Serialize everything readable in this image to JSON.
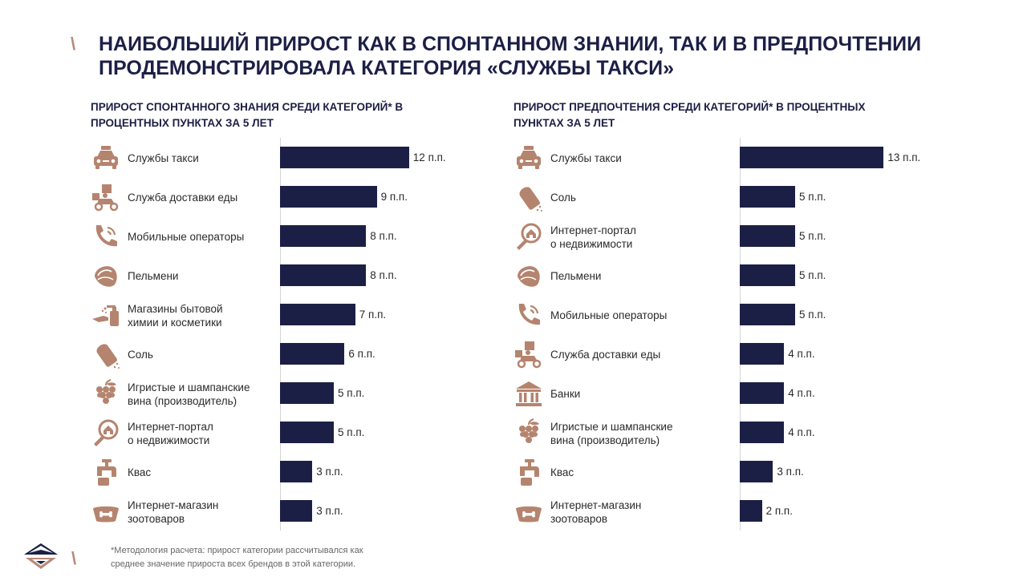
{
  "header": {
    "title": "НАИБОЛЬШИЙ ПРИРОСТ КАК В СПОНТАННОМ ЗНАНИИ, ТАК И В ПРЕДПОЧТЕНИИ ПРОДЕМОНСТРИРОВАЛА КАТЕГОРИЯ «СЛУЖБЫ ТАКСИ»"
  },
  "colors": {
    "bar": "#1c1f45",
    "icon": "#b5846f",
    "title": "#1c1f45",
    "accent": "#b88a7a"
  },
  "chart_data": [
    {
      "type": "bar",
      "orientation": "horizontal",
      "title": "ПРИРОСТ СПОНТАННОГО ЗНАНИЯ СРЕДИ КАТЕГОРИЙ* В ПРОЦЕНТНЫХ ПУНКТАХ ЗА 5 ЛЕТ",
      "categories": [
        "Службы такси",
        "Служба доставки еды",
        "Мобильные операторы",
        "Пельмени",
        "Магазины бытовой\nхимии и косметики",
        "Соль",
        "Игристые и шампанские\nвина (производитель)",
        "Интернет-портал\nо недвижимости",
        "Квас",
        "Интернет-магазин\nзоотоваров"
      ],
      "values": [
        12,
        9,
        8,
        8,
        7,
        6,
        5,
        5,
        3,
        3
      ],
      "value_labels": [
        "12 п.п.",
        "9 п.п.",
        "8 п.п.",
        "8 п.п.",
        "7 п.п.",
        "6 п.п.",
        "5 п.п.",
        "5 п.п.",
        "3 п.п.",
        "3 п.п."
      ],
      "icons": [
        "taxi-icon",
        "food-delivery-icon",
        "phone-icon",
        "dumpling-icon",
        "household-chemicals-icon",
        "salt-icon",
        "grapes-icon",
        "real-estate-search-icon",
        "tap-icon",
        "pet-bowl-icon"
      ],
      "xlim": [
        0,
        13
      ]
    },
    {
      "type": "bar",
      "orientation": "horizontal",
      "title": "ПРИРОСТ ПРЕДПОЧТЕНИЯ СРЕДИ КАТЕГОРИЙ* В ПРОЦЕНТНЫХ ПУНКТАХ ЗА 5 ЛЕТ",
      "categories": [
        "Службы такси",
        "Соль",
        "Интернет-портал\nо недвижимости",
        "Пельмени",
        "Мобильные операторы",
        "Служба доставки еды",
        "Банки",
        "Игристые и шампанские\nвина (производитель)",
        "Квас",
        "Интернет-магазин\nзоотоваров"
      ],
      "values": [
        13,
        5,
        5,
        5,
        5,
        4,
        4,
        4,
        3,
        2
      ],
      "value_labels": [
        "13 п.п.",
        "5 п.п.",
        "5 п.п.",
        "5 п.п.",
        "5 п.п.",
        "4 п.п.",
        "4 п.п.",
        "4 п.п.",
        "3 п.п.",
        "2 п.п."
      ],
      "icons": [
        "taxi-icon",
        "salt-icon",
        "real-estate-search-icon",
        "dumpling-icon",
        "phone-icon",
        "food-delivery-icon",
        "bank-icon",
        "grapes-icon",
        "tap-icon",
        "pet-bowl-icon"
      ],
      "xlim": [
        0,
        13
      ]
    }
  ],
  "footnote": "*Методология  расчета: прирост категории рассчитывался как\nсреднее  значение прироста всех брендов  в этой категории."
}
